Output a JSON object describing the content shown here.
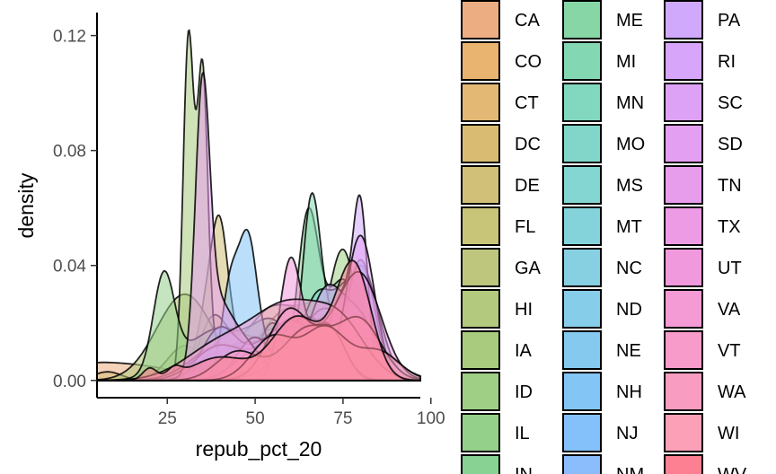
{
  "chart_data": {
    "type": "area",
    "xlabel": "repub_pct_20",
    "ylabel": "density",
    "xlim": [
      5,
      97
    ],
    "ylim": [
      -0.006,
      0.128
    ],
    "x_ticks": [
      25,
      50,
      75,
      100
    ],
    "x_tick_labels": [
      "25",
      "50",
      "75",
      "100"
    ],
    "y_ticks": [
      0.0,
      0.04,
      0.08,
      0.12
    ],
    "y_tick_labels": [
      "0.00",
      "0.04",
      "0.08",
      "0.12"
    ],
    "grid": false,
    "legend_position": "right",
    "legend_columns": 3,
    "fill_opacity": 0.55,
    "series": [
      {
        "name": "CA",
        "color": "#EDAD82",
        "peaks": [
          [
            5,
            0.006,
            12
          ],
          [
            22,
            0.002,
            8
          ],
          [
            60,
            0.014,
            14
          ]
        ]
      },
      {
        "name": "CO",
        "color": "#E8B46F",
        "peaks": [
          [
            35,
            0.008,
            5
          ],
          [
            60,
            0.025,
            9
          ],
          [
            76,
            0.015,
            6
          ]
        ]
      },
      {
        "name": "CT",
        "color": "#E2B874",
        "peaks": [
          [
            45,
            0.012,
            8
          ],
          [
            60,
            0.014,
            6
          ]
        ]
      },
      {
        "name": "DC",
        "color": "#D9BC72",
        "peaks": [
          [
            8,
            0.003,
            4
          ]
        ]
      },
      {
        "name": "DE",
        "color": "#D0C078",
        "peaks": [
          [
            40,
            0.045,
            2.5
          ],
          [
            50,
            0.015,
            6
          ],
          [
            36,
            0.02,
            3
          ]
        ]
      },
      {
        "name": "FL",
        "color": "#C8C478",
        "peaks": [
          [
            38,
            0.02,
            4
          ],
          [
            55,
            0.025,
            8
          ],
          [
            70,
            0.022,
            6
          ]
        ]
      },
      {
        "name": "GA",
        "color": "#BEC67E",
        "peaks": [
          [
            30,
            0.012,
            5
          ],
          [
            56,
            0.018,
            8
          ],
          [
            72,
            0.02,
            6
          ]
        ]
      },
      {
        "name": "HI",
        "color": "#B3C97E",
        "peaks": [
          [
            30,
            0.03,
            8
          ]
        ]
      },
      {
        "name": "IA",
        "color": "#A9CB7E",
        "peaks": [
          [
            31,
            0.115,
            1.5
          ],
          [
            35,
            0.1,
            1.5
          ],
          [
            38,
            0.01,
            5
          ]
        ]
      },
      {
        "name": "ID",
        "color": "#9FCE85",
        "peaks": [
          [
            62,
            0.018,
            5
          ],
          [
            75,
            0.045,
            4
          ]
        ]
      },
      {
        "name": "IL",
        "color": "#94D08A",
        "peaks": [
          [
            24,
            0.033,
            3
          ],
          [
            40,
            0.018,
            10
          ],
          [
            62,
            0.012,
            8
          ]
        ]
      },
      {
        "name": "IN",
        "color": "#88D293",
        "peaks": [
          [
            45,
            0.012,
            5
          ],
          [
            65,
            0.055,
            3
          ],
          [
            75,
            0.035,
            5
          ]
        ]
      },
      {
        "name": "ME",
        "color": "#86D6A6",
        "peaks": [
          [
            42,
            0.014,
            6
          ],
          [
            55,
            0.02,
            6
          ]
        ]
      },
      {
        "name": "MI",
        "color": "#84D7B3",
        "peaks": [
          [
            55,
            0.02,
            4
          ],
          [
            66,
            0.058,
            2.5
          ],
          [
            72,
            0.02,
            4
          ]
        ]
      },
      {
        "name": "MN",
        "color": "#82D7BF",
        "peaks": [
          [
            45,
            0.012,
            6
          ],
          [
            60,
            0.02,
            6
          ],
          [
            72,
            0.018,
            5
          ]
        ]
      },
      {
        "name": "MO",
        "color": "#82D6C9",
        "peaks": [
          [
            40,
            0.01,
            6
          ],
          [
            68,
            0.03,
            5
          ],
          [
            78,
            0.03,
            4
          ]
        ]
      },
      {
        "name": "MS",
        "color": "#83D6D2",
        "peaks": [
          [
            40,
            0.01,
            5
          ],
          [
            70,
            0.022,
            8
          ]
        ]
      },
      {
        "name": "MT",
        "color": "#84D3DB",
        "peaks": [
          [
            45,
            0.012,
            8
          ],
          [
            70,
            0.025,
            7
          ]
        ]
      },
      {
        "name": "NC",
        "color": "#86D0E2",
        "peaks": [
          [
            40,
            0.012,
            8
          ],
          [
            65,
            0.022,
            8
          ]
        ]
      },
      {
        "name": "ND",
        "color": "#86CDE9",
        "peaks": [
          [
            60,
            0.012,
            6
          ],
          [
            80,
            0.04,
            5
          ]
        ]
      },
      {
        "name": "NE",
        "color": "#85C9EF",
        "peaks": [
          [
            50,
            0.01,
            6
          ],
          [
            80,
            0.042,
            4
          ]
        ]
      },
      {
        "name": "NH",
        "color": "#83C5F5",
        "peaks": [
          [
            43,
            0.033,
            2.5
          ],
          [
            48,
            0.045,
            2.5
          ],
          [
            53,
            0.01,
            3
          ]
        ]
      },
      {
        "name": "NJ",
        "color": "#84C1FA",
        "peaks": [
          [
            40,
            0.018,
            5
          ],
          [
            55,
            0.015,
            6
          ],
          [
            75,
            0.01,
            5
          ]
        ]
      },
      {
        "name": "NM",
        "color": "#8BBCFC",
        "peaks": [
          [
            40,
            0.012,
            7
          ],
          [
            60,
            0.02,
            7
          ],
          [
            80,
            0.015,
            8
          ]
        ]
      },
      {
        "name": "PA",
        "color": "#D0A8FC",
        "peaks": [
          [
            62,
            0.012,
            4
          ],
          [
            75,
            0.03,
            4
          ],
          [
            80,
            0.05,
            2
          ]
        ]
      },
      {
        "name": "RI",
        "color": "#D7A5FA",
        "peaks": [
          [
            50,
            0.015,
            5
          ]
        ]
      },
      {
        "name": "SC",
        "color": "#DDA2F6",
        "peaks": [
          [
            50,
            0.01,
            6
          ],
          [
            70,
            0.03,
            5
          ],
          [
            80,
            0.02,
            5
          ]
        ]
      },
      {
        "name": "SD",
        "color": "#E3A0F2",
        "peaks": [
          [
            60,
            0.01,
            8
          ],
          [
            80,
            0.05,
            4
          ]
        ]
      },
      {
        "name": "TN",
        "color": "#E89DEC",
        "peaks": [
          [
            35,
            0.088,
            2
          ],
          [
            38,
            0.02,
            4
          ],
          [
            45,
            0.015,
            6
          ]
        ]
      },
      {
        "name": "TX",
        "color": "#ED9BE5",
        "peaks": [
          [
            65,
            0.015,
            8
          ],
          [
            80,
            0.035,
            6
          ]
        ]
      },
      {
        "name": "UT",
        "color": "#F199DD",
        "peaks": [
          [
            60,
            0.04,
            3
          ],
          [
            70,
            0.02,
            5
          ]
        ]
      },
      {
        "name": "VA",
        "color": "#F49AD4",
        "peaks": [
          [
            40,
            0.012,
            10
          ],
          [
            60,
            0.025,
            10
          ],
          [
            75,
            0.015,
            7
          ]
        ]
      },
      {
        "name": "VT",
        "color": "#F79BCB",
        "peaks": [
          [
            60,
            0.025,
            6
          ],
          [
            72,
            0.015,
            4
          ]
        ]
      },
      {
        "name": "WA",
        "color": "#F99CC1",
        "peaks": [
          [
            45,
            0.01,
            6
          ],
          [
            65,
            0.018,
            7
          ],
          [
            80,
            0.02,
            6
          ]
        ]
      },
      {
        "name": "WI",
        "color": "#FBA0B7",
        "peaks": [
          [
            55,
            0.015,
            6
          ],
          [
            70,
            0.018,
            6
          ],
          [
            85,
            0.01,
            6
          ]
        ]
      },
      {
        "name": "WV",
        "color": "#FD7F92",
        "peaks": [
          [
            20,
            0.004,
            2
          ],
          [
            27,
            0.003,
            2
          ],
          [
            40,
            0.008,
            8
          ],
          [
            62,
            0.022,
            7
          ],
          [
            78,
            0.04,
            5
          ]
        ]
      }
    ]
  }
}
